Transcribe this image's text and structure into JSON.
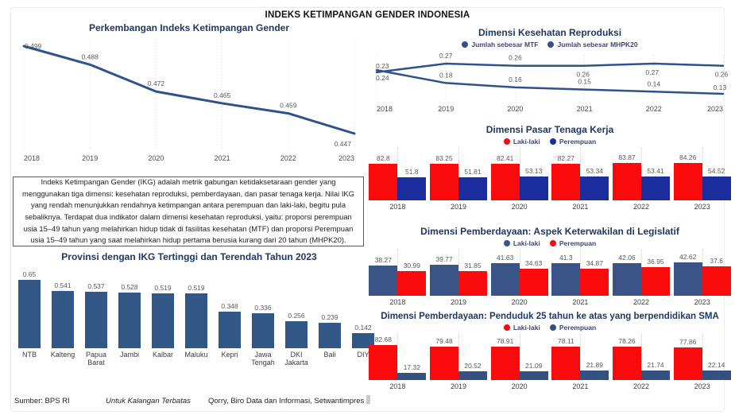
{
  "title": "INDEKS KETIMPANGAN GENDER INDONESIA",
  "description": "Indeks Ketimpangan Gender (IKG) adalah metrik gabungan ketidaksetaraan gender yang menggunakan tiga dimensi: kesehatan reproduksi, pemberdayaan, dan pasar tenaga kerja. Nilai IKG yang rendah menunjukkan rendahnya ketimpangan antara perempuan dan laki-laki, begitu pula sebaliknya. Terdapat dua indikator dalam dimensi kesehatan reproduksi, yaitu: proporsi perempuan usia 15–49 tahun yang melahirkan hidup tidak di fasilitas kesehatan (MTF) dan proporsi Perempuan usia 15–49 tahun yang saat melahirkan hidup pertama berusia kurang dari 20 tahun (MHPK20).",
  "footer": {
    "source": "Sumber: BPS RI",
    "classification": "Untuk Kalangan Terbatas",
    "credit": "Qorry, Biro Data dan Informasi, Setwantimpres"
  },
  "colors": {
    "title_navy": "#1F3864",
    "line_blue": "#2E538C",
    "red": "#FA0B0B",
    "royal_blue": "#1B2C9E",
    "slate_navy": "#3A5488",
    "slate_navy_dark": "#34517F",
    "province_bar": "#315787",
    "label_gray": "#595959"
  },
  "chart_data": [
    {
      "id": "ikg_trend",
      "type": "line",
      "title": "Perkembangan Indeks Ketimpangan Gender",
      "x": [
        "2018",
        "2019",
        "2020",
        "2021",
        "2022",
        "2023"
      ],
      "series": [
        {
          "name": "IKG",
          "color": "#2E538C",
          "values": [
            0.499,
            0.488,
            0.472,
            0.465,
            0.459,
            0.447
          ]
        }
      ],
      "legend_visible": false,
      "grid": "vertical-dotted",
      "ylim": [
        0.447,
        0.499
      ]
    },
    {
      "id": "kesehatan",
      "type": "line",
      "title": "Dimensi Kesehatan Reproduksi",
      "x": [
        "2018",
        "2019",
        "2020",
        "2021",
        "2022",
        "2023"
      ],
      "series": [
        {
          "name": "Jumlah sebesar MTF",
          "color": "#2E538C",
          "values": [
            0.23,
            0.27,
            0.26,
            0.26,
            0.27,
            0.26
          ]
        },
        {
          "name": "Jumlah sebesar MHPK20",
          "color": "#2E538C",
          "values": [
            0.24,
            0.18,
            0.16,
            0.15,
            0.14,
            0.13
          ]
        }
      ],
      "legend_visible": true,
      "legend_position": "top",
      "grid": "vertical-dotted",
      "ylim": [
        0.13,
        0.27
      ]
    },
    {
      "id": "pasar",
      "type": "bar",
      "title": "Dimensi Pasar Tenaga Kerja",
      "x": [
        "2018",
        "2019",
        "2020",
        "2021",
        "2022",
        "2023"
      ],
      "series": [
        {
          "name": "Laki-laki",
          "color": "#FA0B0B",
          "values": [
            82.8,
            83.25,
            82.41,
            82.27,
            83.87,
            84.26
          ]
        },
        {
          "name": "Perempuan",
          "color": "#1B2C9E",
          "values": [
            51.8,
            51.81,
            53.13,
            53.34,
            53.41,
            54.52
          ]
        }
      ],
      "legend_visible": true,
      "legend_position": "top"
    },
    {
      "id": "legislatif",
      "type": "bar",
      "title": "Dimensi Pemberdayaan: Aspek Keterwakilan di Legislatif",
      "x": [
        "2018",
        "2019",
        "2020",
        "2021",
        "2022",
        "2023"
      ],
      "series": [
        {
          "name": "Laki-laki",
          "color": "#3A5488",
          "values": [
            38.27,
            39.77,
            41.63,
            41.3,
            42.06,
            42.62
          ]
        },
        {
          "name": "Perempuan",
          "color": "#FA0B0B",
          "values": [
            30.99,
            31.85,
            34.63,
            34.87,
            36.95,
            37.6
          ]
        }
      ],
      "legend_visible": true,
      "legend_position": "top"
    },
    {
      "id": "sma",
      "type": "bar",
      "title": "Dimensi Pemberdayaan: Penduduk 25 tahun ke atas yang berpendidikan SMA",
      "x": [
        "2018",
        "2019",
        "2020",
        "2021",
        "2022",
        "2023"
      ],
      "series": [
        {
          "name": "Laki-laki",
          "color": "#FA0B0B",
          "values": [
            82.68,
            79.48,
            78.91,
            78.11,
            78.26,
            77.86
          ]
        },
        {
          "name": "Perempuan",
          "color": "#34517F",
          "values": [
            17.32,
            20.52,
            21.09,
            21.89,
            21.74,
            22.14
          ]
        }
      ],
      "legend_visible": true,
      "legend_position": "top"
    },
    {
      "id": "provinsi",
      "type": "bar",
      "title": "Provinsi dengan IKG Tertinggi dan Terendah Tahun 2023",
      "categories": [
        "NTB",
        "Kalteng",
        "Papua Barat",
        "Jambi",
        "Kalbar",
        "Maluku",
        "Kepri",
        "Jawa Tengah",
        "DKI Jakarta",
        "Bali",
        "DIY"
      ],
      "values": [
        0.65,
        0.541,
        0.537,
        0.528,
        0.519,
        0.519,
        0.348,
        0.336,
        0.256,
        0.239,
        0.142
      ],
      "series": [
        {
          "name": "IKG 2023",
          "color": "#315787",
          "values": [
            0.65,
            0.541,
            0.537,
            0.528,
            0.519,
            0.519,
            0.348,
            0.336,
            0.256,
            0.239,
            0.142
          ]
        }
      ],
      "legend_visible": false
    }
  ]
}
